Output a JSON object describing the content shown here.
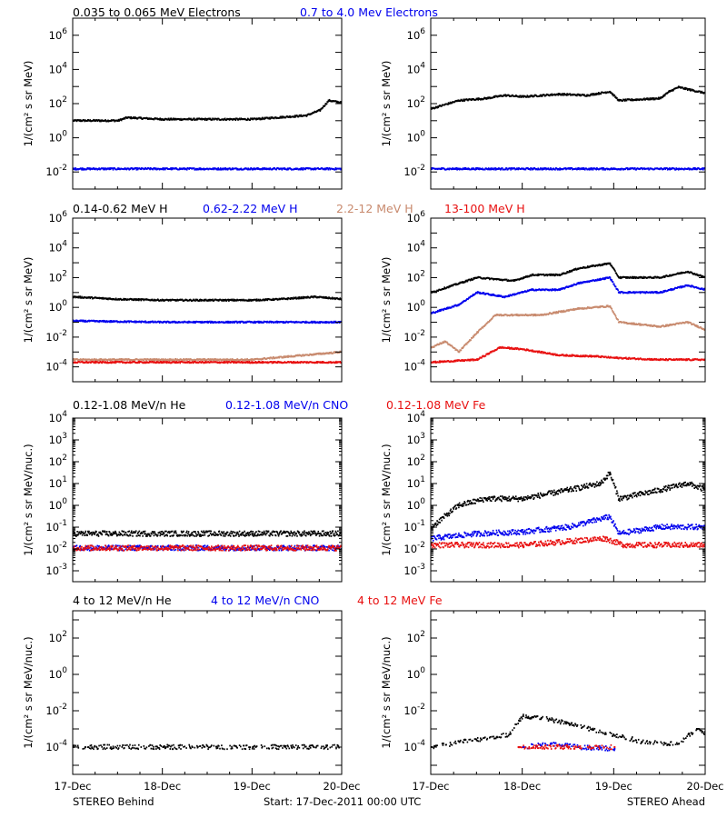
{
  "footer": {
    "left": "STEREO Behind",
    "center": "Start: 17-Dec-2011 00:00 UTC",
    "right": "STEREO Ahead"
  },
  "x_axis": {
    "ticks": [
      "17-Dec",
      "18-Dec",
      "19-Dec",
      "20-Dec"
    ],
    "range_days": [
      0,
      3
    ]
  },
  "colors": {
    "black": "#000000",
    "blue": "#0000ee",
    "brown": "#c88a6e",
    "red": "#e81010"
  },
  "rows": [
    {
      "titles": [
        {
          "text": "0.035 to 0.065 MeV Electrons",
          "color": "black"
        },
        {
          "text": "0.7 to 4.0 Mev Electrons",
          "color": "blue"
        }
      ],
      "ylabel": "1/(cm² s sr MeV)",
      "ylim_exp": [
        -3,
        7
      ],
      "ticks": [
        {
          "e": -2,
          "t": "10^-2"
        },
        {
          "e": 0,
          "t": "10^0"
        },
        {
          "e": 2,
          "t": "10^2"
        },
        {
          "e": 4,
          "t": "10^4"
        },
        {
          "e": 6,
          "t": "10^6"
        }
      ]
    },
    {
      "titles": [
        {
          "text": "0.14-0.62 MeV H",
          "color": "black"
        },
        {
          "text": "0.62-2.22 MeV H",
          "color": "blue"
        },
        {
          "text": "2.2-12 MeV H",
          "color": "brown"
        },
        {
          "text": "13-100 MeV H",
          "color": "red"
        }
      ],
      "ylabel": "1/(cm² s sr MeV)",
      "ylim_exp": [
        -5,
        6
      ],
      "ticks": [
        {
          "e": -4,
          "t": "10^-4"
        },
        {
          "e": -2,
          "t": "10^-2"
        },
        {
          "e": 0,
          "t": "10^0"
        },
        {
          "e": 2,
          "t": "10^2"
        },
        {
          "e": 4,
          "t": "10^4"
        },
        {
          "e": 6,
          "t": "10^6"
        }
      ]
    },
    {
      "titles": [
        {
          "text": "0.12-1.08 MeV/n He",
          "color": "black"
        },
        {
          "text": "0.12-1.08 MeV/n CNO",
          "color": "blue"
        },
        {
          "text": "0.12-1.08 MeV Fe",
          "color": "red"
        }
      ],
      "ylabel": "1/(cm² s sr MeV/nuc.)",
      "ylim_exp": [
        -3.5,
        4
      ],
      "ticks": [
        {
          "e": -3,
          "t": "10^-3"
        },
        {
          "e": -2,
          "t": "10^-2"
        },
        {
          "e": -1,
          "t": "10^-1"
        },
        {
          "e": 0,
          "t": "10^0"
        },
        {
          "e": 1,
          "t": "10^1"
        },
        {
          "e": 2,
          "t": "10^2"
        },
        {
          "e": 3,
          "t": "10^3"
        },
        {
          "e": 4,
          "t": "10^4"
        }
      ]
    },
    {
      "titles": [
        {
          "text": "4 to 12 MeV/n He",
          "color": "black"
        },
        {
          "text": "4 to 12 MeV/n CNO",
          "color": "blue"
        },
        {
          "text": "4 to 12 MeV Fe",
          "color": "red"
        }
      ],
      "ylabel": "1/(cm² s sr MeV/nuc.)",
      "ylim_exp": [
        -5.5,
        3.5
      ],
      "ticks": [
        {
          "e": -4,
          "t": "10^-4"
        },
        {
          "e": -2,
          "t": "10^-2"
        },
        {
          "e": 0,
          "t": "10^0"
        },
        {
          "e": 2,
          "t": "10^2"
        }
      ]
    }
  ],
  "chart_data": [
    {
      "type": "scatter",
      "title": "0.035 to 0.065 MeV Electrons / 0.7 to 4.0 Mev Electrons",
      "subtitle": "STEREO Behind",
      "yscale": "log",
      "xlabel": "",
      "ylabel": "1/(cm² s sr MeV)",
      "ylim": [
        0.001,
        10000000.0
      ],
      "series": [
        {
          "name": "0.035 to 0.065 MeV Electrons",
          "color": "black",
          "points": [
            [
              0,
              10
            ],
            [
              0.5,
              10
            ],
            [
              0.6,
              15
            ],
            [
              1,
              12
            ],
            [
              2,
              12
            ],
            [
              2.6,
              20
            ],
            [
              2.75,
              40
            ],
            [
              2.85,
              150
            ],
            [
              3,
              110
            ]
          ]
        },
        {
          "name": "0.7 to 4.0 Mev Electrons",
          "color": "blue",
          "points": [
            [
              0,
              0.015
            ],
            [
              1,
              0.015
            ],
            [
              2,
              0.015
            ],
            [
              3,
              0.015
            ]
          ]
        }
      ]
    },
    {
      "type": "scatter",
      "title": "0.035 to 0.065 MeV Electrons / 0.7 to 4.0 Mev Electrons",
      "subtitle": "STEREO Ahead",
      "yscale": "log",
      "xlabel": "",
      "ylabel": "1/(cm² s sr MeV)",
      "ylim": [
        0.001,
        10000000.0
      ],
      "series": [
        {
          "name": "0.035 to 0.065 MeV Electrons",
          "color": "black",
          "points": [
            [
              0,
              50
            ],
            [
              0.3,
              150
            ],
            [
              0.6,
              200
            ],
            [
              0.8,
              300
            ],
            [
              1,
              250
            ],
            [
              1.4,
              350
            ],
            [
              1.7,
              300
            ],
            [
              1.95,
              500
            ],
            [
              2.05,
              150
            ],
            [
              2.5,
              200
            ],
            [
              2.6,
              500
            ],
            [
              2.7,
              900
            ],
            [
              3,
              400
            ]
          ]
        },
        {
          "name": "0.7 to 4.0 Mev Electrons",
          "color": "blue",
          "points": [
            [
              0,
              0.015
            ],
            [
              1,
              0.015
            ],
            [
              2,
              0.015
            ],
            [
              3,
              0.015
            ]
          ]
        }
      ]
    },
    {
      "type": "scatter",
      "title": "0.14-0.62 MeV H / 0.62-2.22 MeV H / 2.2-12 MeV H / 13-100 MeV H",
      "subtitle": "STEREO Behind",
      "yscale": "log",
      "xlabel": "",
      "ylabel": "1/(cm² s sr MeV)",
      "ylim": [
        1e-05,
        1000000.0
      ],
      "series": [
        {
          "name": "0.14-0.62 MeV H",
          "color": "black",
          "points": [
            [
              0,
              5
            ],
            [
              0.5,
              3.5
            ],
            [
              1,
              3
            ],
            [
              1.5,
              3
            ],
            [
              2,
              3
            ],
            [
              2.3,
              3.5
            ],
            [
              2.7,
              5
            ],
            [
              3,
              3.5
            ]
          ]
        },
        {
          "name": "0.62-2.22 MeV H",
          "color": "blue",
          "points": [
            [
              0,
              0.12
            ],
            [
              1,
              0.1
            ],
            [
              2,
              0.1
            ],
            [
              3,
              0.1
            ]
          ]
        },
        {
          "name": "2.2-12 MeV H",
          "color": "brown",
          "points": [
            [
              0,
              0.0003
            ],
            [
              2,
              0.0003
            ],
            [
              3,
              0.001
            ]
          ]
        },
        {
          "name": "13-100 MeV H",
          "color": "red",
          "points": [
            [
              0,
              0.0002
            ],
            [
              1,
              0.0002
            ],
            [
              2,
              0.0002
            ],
            [
              3,
              0.0002
            ]
          ]
        }
      ]
    },
    {
      "type": "scatter",
      "title": "0.14-0.62 MeV H / 0.62-2.22 MeV H / 2.2-12 MeV H / 13-100 MeV H",
      "subtitle": "STEREO Ahead",
      "yscale": "log",
      "xlabel": "",
      "ylabel": "1/(cm² s sr MeV)",
      "ylim": [
        1e-05,
        1000000.0
      ],
      "series": [
        {
          "name": "0.14-0.62 MeV H",
          "color": "black",
          "points": [
            [
              0,
              10
            ],
            [
              0.3,
              40
            ],
            [
              0.5,
              100
            ],
            [
              0.9,
              60
            ],
            [
              1.1,
              150
            ],
            [
              1.4,
              150
            ],
            [
              1.6,
              400
            ],
            [
              1.95,
              900
            ],
            [
              2.05,
              100
            ],
            [
              2.5,
              100
            ],
            [
              2.8,
              250
            ],
            [
              3,
              100
            ]
          ]
        },
        {
          "name": "0.62-2.22 MeV H",
          "color": "blue",
          "points": [
            [
              0,
              0.4
            ],
            [
              0.3,
              1.5
            ],
            [
              0.5,
              10
            ],
            [
              0.8,
              5
            ],
            [
              1.1,
              15
            ],
            [
              1.4,
              15
            ],
            [
              1.6,
              40
            ],
            [
              1.95,
              100
            ],
            [
              2.05,
              10
            ],
            [
              2.5,
              10
            ],
            [
              2.8,
              30
            ],
            [
              3,
              15
            ]
          ]
        },
        {
          "name": "2.2-12 MeV H",
          "color": "brown",
          "points": [
            [
              0,
              0.002
            ],
            [
              0.15,
              0.005
            ],
            [
              0.3,
              0.001
            ],
            [
              0.5,
              0.02
            ],
            [
              0.7,
              0.3
            ],
            [
              1.2,
              0.3
            ],
            [
              1.6,
              0.8
            ],
            [
              1.95,
              1.2
            ],
            [
              2.05,
              0.1
            ],
            [
              2.5,
              0.05
            ],
            [
              2.8,
              0.1
            ],
            [
              3,
              0.03
            ]
          ]
        },
        {
          "name": "13-100 MeV H",
          "color": "red",
          "points": [
            [
              0,
              0.0002
            ],
            [
              0.5,
              0.0003
            ],
            [
              0.75,
              0.002
            ],
            [
              1,
              0.0015
            ],
            [
              1.4,
              0.0006
            ],
            [
              1.8,
              0.0005
            ],
            [
              2,
              0.0004
            ],
            [
              2.5,
              0.0003
            ],
            [
              3,
              0.0003
            ]
          ]
        }
      ]
    },
    {
      "type": "scatter",
      "title": "0.12-1.08 MeV/n He / 0.12-1.08 MeV/n CNO / 0.12-1.08 MeV Fe",
      "subtitle": "STEREO Behind",
      "yscale": "log",
      "xlabel": "",
      "ylabel": "1/(cm² s sr MeV/nuc.)",
      "ylim": [
        0.00032,
        10000.0
      ],
      "series": [
        {
          "name": "0.12-1.08 MeV/n He",
          "color": "black",
          "points": [
            [
              0,
              0.05
            ],
            [
              1,
              0.05
            ],
            [
              2,
              0.05
            ],
            [
              3,
              0.05
            ]
          ]
        },
        {
          "name": "0.12-1.08 MeV/n CNO",
          "color": "blue",
          "points": [
            [
              0,
              0.011
            ],
            [
              3,
              0.011
            ]
          ]
        },
        {
          "name": "0.12-1.08 MeV Fe",
          "color": "red",
          "points": [
            [
              0,
              0.011
            ],
            [
              3,
              0.011
            ]
          ]
        }
      ]
    },
    {
      "type": "scatter",
      "title": "0.12-1.08 MeV/n He / 0.12-1.08 MeV/n CNO / 0.12-1.08 MeV Fe",
      "subtitle": "STEREO Ahead",
      "yscale": "log",
      "xlabel": "",
      "ylabel": "1/(cm² s sr MeV/nuc.)",
      "ylim": [
        0.00032,
        10000.0
      ],
      "series": [
        {
          "name": "0.12-1.08 MeV/n He",
          "color": "black",
          "points": [
            [
              0,
              0.1
            ],
            [
              0.3,
              1
            ],
            [
              0.6,
              2
            ],
            [
              1,
              2
            ],
            [
              1.5,
              5
            ],
            [
              1.85,
              10
            ],
            [
              1.95,
              30
            ],
            [
              2.05,
              2
            ],
            [
              2.5,
              5
            ],
            [
              2.8,
              10
            ],
            [
              3,
              5
            ]
          ]
        },
        {
          "name": "0.12-1.08 MeV/n CNO",
          "color": "blue",
          "points": [
            [
              0,
              0.03
            ],
            [
              0.5,
              0.05
            ],
            [
              1,
              0.06
            ],
            [
              1.5,
              0.1
            ],
            [
              1.95,
              0.3
            ],
            [
              2.05,
              0.05
            ],
            [
              2.5,
              0.1
            ],
            [
              3,
              0.1
            ]
          ]
        },
        {
          "name": "0.12-1.08 MeV Fe",
          "color": "red",
          "points": [
            [
              0,
              0.015
            ],
            [
              1,
              0.015
            ],
            [
              1.9,
              0.03
            ],
            [
              2.1,
              0.015
            ],
            [
              3,
              0.015
            ]
          ]
        }
      ]
    },
    {
      "type": "scatter",
      "title": "4 to 12 MeV/n He / 4 to 12 MeV/n CNO / 4 to 12 MeV Fe",
      "subtitle": "STEREO Behind",
      "yscale": "log",
      "xlabel": "",
      "ylabel": "1/(cm² s sr MeV/nuc.)",
      "ylim": [
        3.2e-06,
        3200.0
      ],
      "series": [
        {
          "name": "4 to 12 MeV/n He",
          "color": "black",
          "points": [
            [
              0,
              0.0001
            ],
            [
              1,
              0.0001
            ],
            [
              2,
              0.0001
            ],
            [
              3,
              0.0001
            ]
          ]
        }
      ]
    },
    {
      "type": "scatter",
      "title": "4 to 12 MeV/n He / 4 to 12 MeV/n CNO / 4 to 12 MeV Fe",
      "subtitle": "STEREO Ahead",
      "yscale": "log",
      "xlabel": "",
      "ylabel": "1/(cm² s sr MeV/nuc.)",
      "ylim": [
        3.2e-06,
        3200.0
      ],
      "series": [
        {
          "name": "4 to 12 MeV/n He",
          "color": "black",
          "points": [
            [
              0,
              0.0001
            ],
            [
              0.85,
              0.0005
            ],
            [
              1,
              0.005
            ],
            [
              1.2,
              0.004
            ],
            [
              1.5,
              0.002
            ],
            [
              1.9,
              0.0006
            ],
            [
              2.3,
              0.0002
            ],
            [
              2.7,
              0.00015
            ],
            [
              2.9,
              0.001
            ],
            [
              3,
              0.0005
            ]
          ]
        },
        {
          "name": "4 to 12 MeV/n CNO",
          "color": "blue",
          "points": [
            [
              1,
              0.0001
            ],
            [
              1.3,
              0.00015
            ],
            [
              1.6,
              0.0001
            ],
            [
              2,
              8e-05
            ]
          ]
        },
        {
          "name": "4 to 12 MeV Fe",
          "color": "red",
          "points": [
            [
              0.95,
              0.0001
            ],
            [
              1.5,
              0.0001
            ],
            [
              2,
              0.0001
            ]
          ]
        }
      ]
    }
  ]
}
